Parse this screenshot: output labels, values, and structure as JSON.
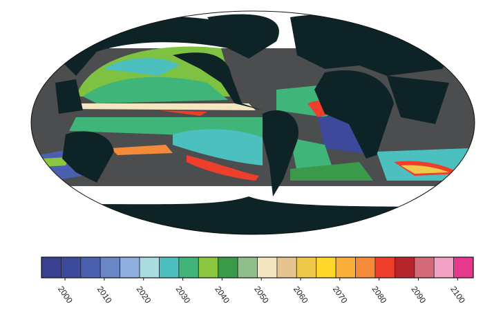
{
  "chart_data": {
    "type": "colorbar",
    "colors": [
      "#3a3f8f",
      "#3d4a9c",
      "#4a5fae",
      "#6a86c6",
      "#8fb0de",
      "#a8dce0",
      "#4cbfbf",
      "#3fb57a",
      "#8cc63f",
      "#3a9a4a",
      "#8fbf8a",
      "#f3e6c0",
      "#e6c38f",
      "#f0c94a",
      "#ffd62a",
      "#fbb03b",
      "#f58a3a",
      "#ee3f2d",
      "#b5252b",
      "#d46a78",
      "#f2a3c4",
      "#e6388c"
    ],
    "xlim": [
      1994,
      2104
    ],
    "xticks": [
      2000,
      2010,
      2020,
      2030,
      2040,
      2050,
      2060,
      2070,
      2080,
      2090,
      2100
    ]
  }
}
